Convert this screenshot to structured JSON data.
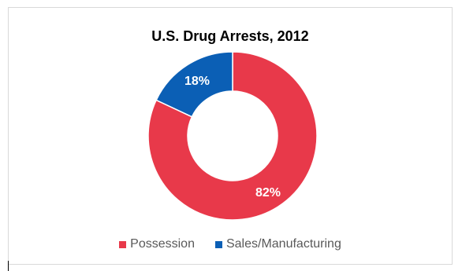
{
  "chart_data": {
    "type": "pie",
    "donut": true,
    "title": "U.S. Drug Arrests, 2012",
    "categories": [
      "Possession",
      "Sales/Manufacturing"
    ],
    "values": [
      82,
      18
    ],
    "data_labels": [
      "82%",
      "18%"
    ],
    "colors": [
      "#e8394a",
      "#0b5fb5"
    ],
    "legend_position": "bottom"
  }
}
